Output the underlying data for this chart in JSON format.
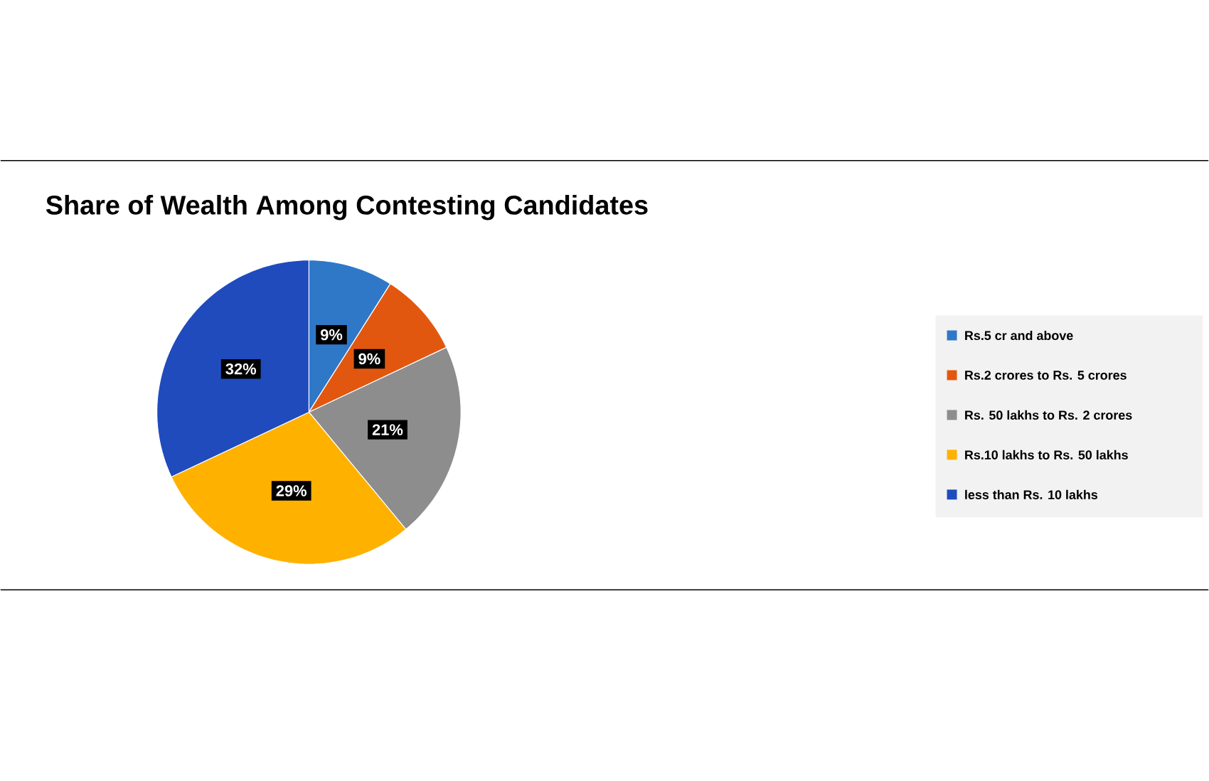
{
  "chart_data": {
    "type": "pie",
    "title": "Share of Wealth Among Contesting Candidates",
    "categories": [
      "Rs.5 cr and above",
      "Rs.2 crores to Rs. 5 crores",
      "Rs. 50 lakhs to Rs. 2 crores",
      "Rs.10 lakhs to Rs. 50 lakhs",
      "less than  Rs. 10 lakhs"
    ],
    "values": [
      9,
      9,
      21,
      29,
      32
    ],
    "value_labels": [
      "9%",
      "9%",
      "21%",
      "29%",
      "32%"
    ],
    "colors": [
      "#2f78c8",
      "#e2570f",
      "#8d8d8d",
      "#ffb100",
      "#1f4bbd"
    ],
    "legend": "right"
  }
}
